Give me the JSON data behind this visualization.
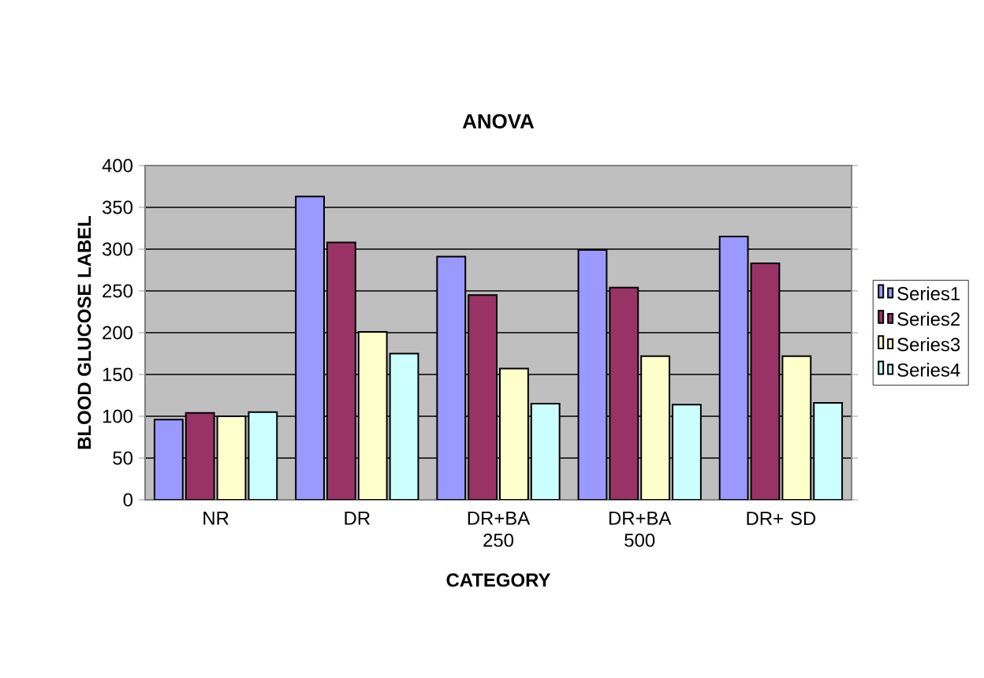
{
  "chart_data": {
    "type": "bar",
    "title": "ANOVA",
    "xlabel": "CATEGORY",
    "ylabel": "BLOOD GLUCOSE LABEL",
    "categories": [
      "NR",
      "DR",
      "DR+BA 250",
      "DR+BA 500",
      "DR+ SD"
    ],
    "series": [
      {
        "name": "Series1",
        "color": "#9999ff",
        "values": [
          96,
          363,
          291,
          299,
          315
        ]
      },
      {
        "name": "Series2",
        "color": "#993366",
        "values": [
          104,
          308,
          245,
          254,
          283
        ]
      },
      {
        "name": "Series3",
        "color": "#ffffcc",
        "values": [
          100,
          201,
          157,
          172,
          172
        ]
      },
      {
        "name": "Series4",
        "color": "#ccffff",
        "values": [
          105,
          175,
          115,
          114,
          116
        ]
      }
    ],
    "ylim": [
      0,
      400
    ],
    "yticks": [
      0,
      50,
      100,
      150,
      200,
      250,
      300,
      350,
      400
    ],
    "grid": "y",
    "legend": "right"
  }
}
